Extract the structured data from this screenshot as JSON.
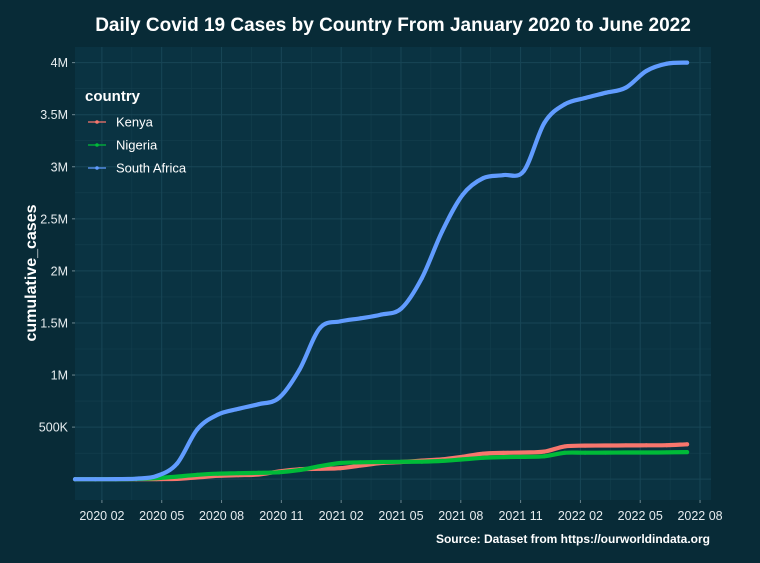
{
  "chart_data": {
    "type": "line",
    "title": "Daily Covid 19 Cases by Country From January 2020 to June 2022",
    "xlabel": "",
    "ylabel": "cumulative_cases",
    "caption": "Source: Dataset from https://ourworldindata.org",
    "legend": {
      "title": "country",
      "position": "top-left"
    },
    "x_ticks": [
      "2020 02",
      "2020 05",
      "2020 08",
      "2020 11",
      "2021 02",
      "2021 05",
      "2021 08",
      "2021 11",
      "2022 02",
      "2022 05",
      "2022 08"
    ],
    "y_ticks": [
      {
        "value": 500000,
        "label": "500K"
      },
      {
        "value": 1000000,
        "label": "1M"
      },
      {
        "value": 1500000,
        "label": "1.5M"
      },
      {
        "value": 2000000,
        "label": "2M"
      },
      {
        "value": 2500000,
        "label": "2.5M"
      },
      {
        "value": 3000000,
        "label": "3M"
      },
      {
        "value": 3500000,
        "label": "3.5M"
      },
      {
        "value": 4000000,
        "label": "4M"
      }
    ],
    "xlim": [
      "2020-01",
      "2022-08"
    ],
    "ylim": [
      -200000,
      4150000
    ],
    "grid": true,
    "x": [
      "2020-01",
      "2020-02",
      "2020-03",
      "2020-04",
      "2020-05",
      "2020-06",
      "2020-07",
      "2020-08",
      "2020-09",
      "2020-10",
      "2020-11",
      "2020-12",
      "2021-01",
      "2021-02",
      "2021-03",
      "2021-04",
      "2021-05",
      "2021-06",
      "2021-07",
      "2021-08",
      "2021-09",
      "2021-10",
      "2021-11",
      "2021-12",
      "2022-01",
      "2022-02",
      "2022-03",
      "2022-04",
      "2022-05",
      "2022-06",
      "2022-07"
    ],
    "series": [
      {
        "name": "Kenya",
        "color": "#f8766d",
        "values": [
          0,
          0,
          0,
          0,
          1000,
          3000,
          17000,
          32000,
          38000,
          45000,
          75000,
          95000,
          100000,
          105000,
          130000,
          155000,
          165000,
          178000,
          190000,
          215000,
          245000,
          252000,
          256000,
          265000,
          315000,
          322000,
          323000,
          324000,
          325000,
          326000,
          335000
        ]
      },
      {
        "name": "Nigeria",
        "color": "#00ba38",
        "values": [
          0,
          0,
          0,
          2000,
          10000,
          25000,
          42000,
          53000,
          57000,
          61000,
          66000,
          87000,
          125000,
          155000,
          162000,
          165000,
          167000,
          168000,
          175000,
          190000,
          205000,
          212000,
          214000,
          220000,
          253000,
          254000,
          255000,
          256000,
          256000,
          257000,
          260000
        ]
      },
      {
        "name": "South Africa",
        "color": "#619cff",
        "values": [
          0,
          0,
          1000,
          5000,
          30000,
          150000,
          480000,
          620000,
          675000,
          720000,
          780000,
          1050000,
          1450000,
          1515000,
          1545000,
          1580000,
          1640000,
          1930000,
          2380000,
          2730000,
          2890000,
          2920000,
          2960000,
          3420000,
          3600000,
          3660000,
          3710000,
          3760000,
          3920000,
          3990000,
          4000000
        ]
      }
    ]
  }
}
